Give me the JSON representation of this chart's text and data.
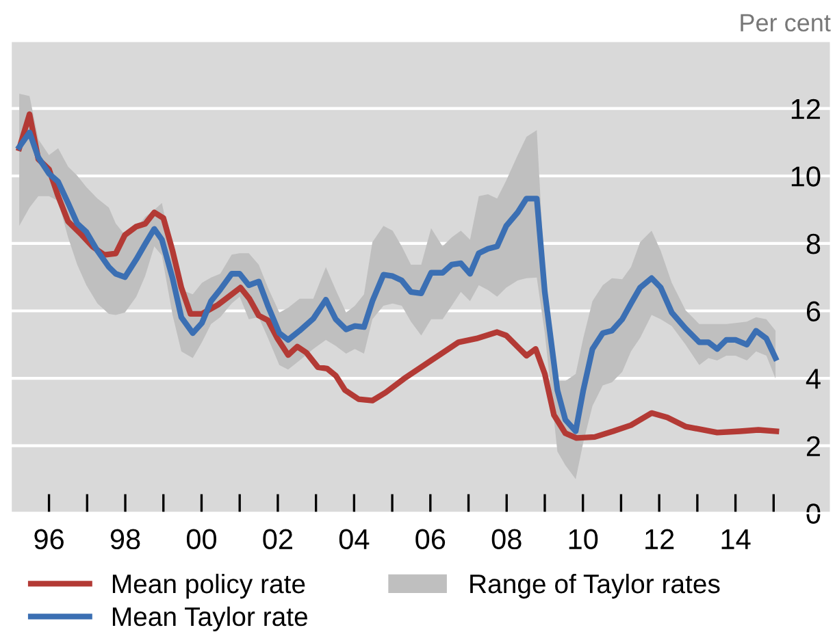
{
  "chart_data": {
    "type": "line",
    "ylabel": "Per cent",
    "annotations": [
      "Range of Taylor rates"
    ],
    "xlim": [
      1995.0,
      2016.5
    ],
    "ylim": [
      0,
      14
    ],
    "xticks": [
      {
        "value": 1996,
        "label": "96"
      },
      {
        "value": 1997,
        "label": null
      },
      {
        "value": 1998,
        "label": "98"
      },
      {
        "value": 1999,
        "label": null
      },
      {
        "value": 2000,
        "label": "00"
      },
      {
        "value": 2001,
        "label": null
      },
      {
        "value": 2002,
        "label": "02"
      },
      {
        "value": 2003,
        "label": null
      },
      {
        "value": 2004,
        "label": "04"
      },
      {
        "value": 2005,
        "label": null
      },
      {
        "value": 2006,
        "label": "06"
      },
      {
        "value": 2007,
        "label": null
      },
      {
        "value": 2008,
        "label": "08"
      },
      {
        "value": 2009,
        "label": null
      },
      {
        "value": 2010,
        "label": "10"
      },
      {
        "value": 2011,
        "label": null
      },
      {
        "value": 2012,
        "label": "12"
      },
      {
        "value": 2013,
        "label": null
      },
      {
        "value": 2014,
        "label": "14"
      },
      {
        "value": 2015,
        "label": null
      }
    ],
    "yticks": [
      0,
      2,
      4,
      6,
      8,
      10,
      12
    ],
    "grid": "y",
    "legend": "bottom",
    "series": [
      {
        "name": "Mean policy rate",
        "color": "#b33a35",
        "x": [
          1995.22,
          1995.49,
          1995.72,
          1996.0,
          1996.24,
          1996.5,
          1996.86,
          1997.15,
          1997.45,
          1997.75,
          1997.99,
          1998.29,
          1998.52,
          1998.76,
          1999.0,
          1999.24,
          1999.47,
          1999.71,
          2000.01,
          2000.43,
          2000.79,
          2001.02,
          2001.26,
          2001.5,
          2001.74,
          2001.98,
          2002.27,
          2002.51,
          2002.75,
          2003.05,
          2003.29,
          2003.52,
          2003.76,
          2004.12,
          2004.48,
          2004.83,
          2005.31,
          2005.76,
          2006.02,
          2006.74,
          2007.21,
          2007.75,
          2007.99,
          2008.52,
          2008.76,
          2009.0,
          2009.24,
          2009.54,
          2009.83,
          2010.31,
          2010.79,
          2011.26,
          2011.8,
          2012.21,
          2012.69,
          2013.52,
          2014.12,
          2014.6,
          2015.07
        ],
        "values": [
          10.82,
          11.83,
          10.5,
          10.2,
          9.4,
          8.65,
          8.25,
          7.9,
          7.66,
          7.7,
          8.25,
          8.5,
          8.58,
          8.92,
          8.75,
          7.78,
          6.69,
          5.91,
          5.91,
          6.18,
          6.49,
          6.69,
          6.35,
          5.86,
          5.72,
          5.2,
          4.69,
          4.94,
          4.76,
          4.33,
          4.29,
          4.08,
          3.65,
          3.38,
          3.34,
          3.58,
          3.99,
          4.33,
          4.53,
          5.07,
          5.18,
          5.37,
          5.27,
          4.67,
          4.87,
          4.13,
          2.91,
          2.37,
          2.23,
          2.26,
          2.43,
          2.61,
          2.97,
          2.84,
          2.57,
          2.39,
          2.43,
          2.47,
          2.43
        ]
      },
      {
        "name": "Mean Taylor rate",
        "color": "#3b6fb3",
        "x": [
          1995.22,
          1995.49,
          1995.72,
          1996.0,
          1996.24,
          1996.5,
          1996.74,
          1996.98,
          1997.27,
          1997.57,
          1997.75,
          1997.99,
          1998.29,
          1998.52,
          1998.76,
          1998.96,
          1999.24,
          1999.47,
          1999.77,
          2000.01,
          2000.25,
          2000.49,
          2000.79,
          2001.0,
          2001.24,
          2001.5,
          2001.74,
          2002.04,
          2002.27,
          2002.57,
          2002.93,
          2003.26,
          2003.52,
          2003.79,
          2004.02,
          2004.26,
          2004.48,
          2004.77,
          2005.01,
          2005.25,
          2005.49,
          2005.76,
          2006.02,
          2006.32,
          2006.56,
          2006.8,
          2007.04,
          2007.27,
          2007.51,
          2007.75,
          2007.99,
          2008.29,
          2008.52,
          2008.79,
          2009.0,
          2009.33,
          2009.54,
          2009.81,
          2010.01,
          2010.25,
          2010.52,
          2010.76,
          2011.03,
          2011.26,
          2011.5,
          2011.8,
          2012.04,
          2012.33,
          2012.69,
          2013.05,
          2013.29,
          2013.52,
          2013.76,
          2014.0,
          2014.3,
          2014.54,
          2014.81,
          2015.05
        ],
        "values": [
          10.86,
          11.29,
          10.55,
          10.07,
          9.83,
          9.2,
          8.59,
          8.34,
          7.78,
          7.3,
          7.1,
          7.0,
          7.53,
          7.98,
          8.43,
          8.11,
          6.97,
          5.81,
          5.34,
          5.64,
          6.29,
          6.63,
          7.1,
          7.1,
          6.76,
          6.87,
          6.15,
          5.34,
          5.14,
          5.41,
          5.77,
          6.33,
          5.75,
          5.45,
          5.55,
          5.52,
          6.29,
          7.07,
          7.03,
          6.9,
          6.56,
          6.52,
          7.13,
          7.13,
          7.37,
          7.41,
          7.1,
          7.71,
          7.84,
          7.91,
          8.52,
          8.92,
          9.33,
          9.33,
          6.56,
          3.65,
          2.77,
          2.43,
          3.65,
          4.87,
          5.34,
          5.41,
          5.75,
          6.22,
          6.69,
          6.97,
          6.69,
          5.95,
          5.48,
          5.07,
          5.07,
          4.87,
          5.14,
          5.14,
          5.0,
          5.41,
          5.18,
          4.6
        ],
        "upper": [
          12.44,
          12.37,
          11.09,
          10.62,
          10.82,
          10.28,
          10.01,
          9.67,
          9.33,
          9.06,
          8.59,
          8.25,
          8.45,
          8.79,
          8.99,
          9.2,
          7.71,
          6.62,
          6.49,
          6.83,
          6.99,
          7.1,
          7.67,
          7.71,
          7.71,
          7.37,
          6.69,
          5.95,
          6.09,
          6.36,
          6.36,
          7.3,
          6.62,
          5.95,
          6.15,
          6.49,
          8.04,
          8.52,
          8.38,
          7.91,
          7.37,
          7.37,
          8.45,
          7.91,
          8.18,
          8.38,
          8.11,
          9.4,
          9.46,
          9.33,
          9.87,
          10.62,
          11.16,
          11.36,
          6.97,
          3.92,
          3.92,
          4.13,
          5.2,
          6.29,
          6.76,
          6.97,
          6.94,
          7.3,
          8.04,
          8.38,
          7.78,
          6.83,
          6.02,
          5.61,
          5.61,
          5.61,
          5.61,
          5.64,
          5.68,
          5.81,
          5.75,
          5.41
        ],
        "lower": [
          8.52,
          9.06,
          9.4,
          9.4,
          9.26,
          8.18,
          7.37,
          6.76,
          6.22,
          5.91,
          5.88,
          5.95,
          6.42,
          7.03,
          7.91,
          7.64,
          5.88,
          4.8,
          4.6,
          5.07,
          5.61,
          5.81,
          6.22,
          6.42,
          5.75,
          5.81,
          5.2,
          4.39,
          4.26,
          4.53,
          4.87,
          5.14,
          4.96,
          4.73,
          4.87,
          4.73,
          5.75,
          6.15,
          6.22,
          6.15,
          5.68,
          5.27,
          5.75,
          5.75,
          6.15,
          6.56,
          6.29,
          6.76,
          6.62,
          6.42,
          6.69,
          6.9,
          6.97,
          6.99,
          5.34,
          1.83,
          1.42,
          1.01,
          2.1,
          3.18,
          3.79,
          3.88,
          4.19,
          4.8,
          5.2,
          5.88,
          5.75,
          5.55,
          5.0,
          4.39,
          4.6,
          4.53,
          4.67,
          4.67,
          4.53,
          4.8,
          4.67,
          3.99
        ]
      }
    ]
  }
}
